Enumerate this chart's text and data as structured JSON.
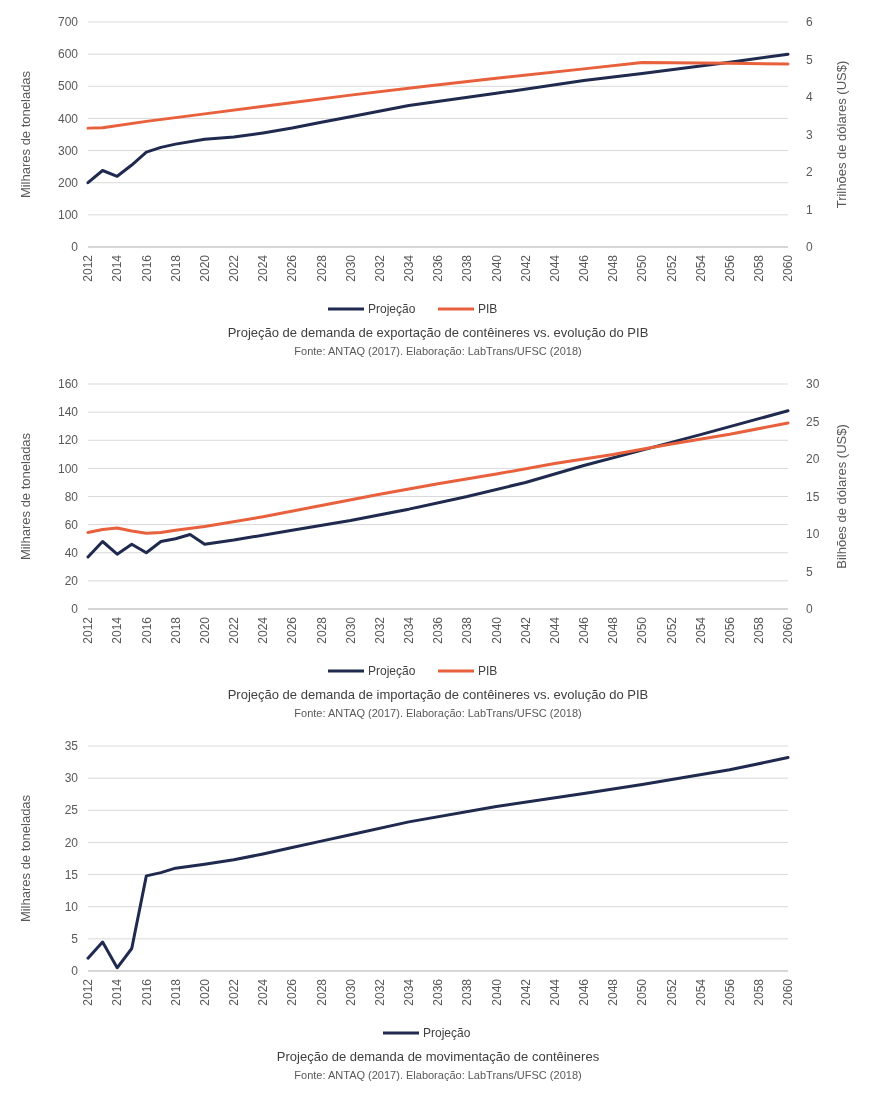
{
  "chart_data": [
    {
      "type": "line",
      "title": "Projeção de demanda de exportação de contêineres vs. evolução do PIB",
      "annotations": [
        "Fonte: ANTAQ (2017). Elaboração: LabTrans/UFSC (2018)"
      ],
      "ylabel": "Milhares de toneladas",
      "y2label": "Trilhões de dólares (US$)",
      "xlim": [
        2012,
        2060
      ],
      "xticks": [
        2012,
        2014,
        2016,
        2018,
        2020,
        2022,
        2024,
        2026,
        2028,
        2030,
        2032,
        2034,
        2036,
        2038,
        2040,
        2042,
        2044,
        2046,
        2048,
        2050,
        2052,
        2054,
        2056,
        2058,
        2060
      ],
      "ylim": [
        0,
        700
      ],
      "yticks": [
        0,
        100,
        200,
        300,
        400,
        500,
        600,
        700
      ],
      "y2lim": [
        0,
        6
      ],
      "y2ticks": [
        0,
        1,
        2,
        3,
        4,
        5,
        6
      ],
      "grid": "y",
      "legend": "bottom",
      "line_style": "solid",
      "series": [
        {
          "name": "Projeção",
          "color": "#1f2a4e",
          "x": [
            2012,
            2013,
            2014,
            2015,
            2016,
            2017,
            2018,
            2020,
            2022,
            2024,
            2026,
            2028,
            2030,
            2034,
            2040,
            2046,
            2050,
            2056,
            2060
          ],
          "values": [
            200,
            238,
            220,
            255,
            295,
            310,
            320,
            335,
            342,
            355,
            370,
            388,
            405,
            440,
            478,
            518,
            540,
            575,
            600
          ]
        },
        {
          "name": "PIB",
          "color": "#e8603c",
          "axis": "y2",
          "x": [
            2012,
            2013,
            2016,
            2020,
            2025,
            2030,
            2035,
            2040,
            2046,
            2050,
            2056,
            2060
          ],
          "values": [
            3.17,
            3.18,
            3.35,
            3.55,
            3.8,
            4.05,
            4.28,
            4.5,
            4.75,
            4.92,
            4.9,
            4.88
          ]
        }
      ]
    },
    {
      "type": "line",
      "title": "Projeção de demanda de importação de contêineres vs. evolução do PIB",
      "annotations": [
        "Fonte: ANTAQ (2017). Elaboração: LabTrans/UFSC (2018)"
      ],
      "ylabel": "Milhares de toneladas",
      "y2label": "Bilhões de dólares (US$)",
      "xlim": [
        2012,
        2060
      ],
      "xticks": [
        2012,
        2014,
        2016,
        2018,
        2020,
        2022,
        2024,
        2026,
        2028,
        2030,
        2032,
        2034,
        2036,
        2038,
        2040,
        2042,
        2044,
        2046,
        2048,
        2050,
        2052,
        2054,
        2056,
        2058,
        2060
      ],
      "ylim": [
        0,
        160
      ],
      "yticks": [
        0,
        20,
        40,
        60,
        80,
        100,
        120,
        140,
        160
      ],
      "y2lim": [
        0,
        30
      ],
      "y2ticks": [
        0,
        5,
        10,
        15,
        20,
        25,
        30
      ],
      "grid": "y",
      "legend": "bottom",
      "line_style": "solid",
      "series": [
        {
          "name": "Projeção",
          "color": "#1f2a4e",
          "x": [
            2012,
            2013,
            2014,
            2015,
            2016,
            2017,
            2018,
            2019,
            2020,
            2022,
            2026,
            2030,
            2034,
            2038,
            2042,
            2046,
            2050,
            2054,
            2060
          ],
          "values": [
            37,
            48,
            39,
            46,
            40,
            48,
            50,
            53,
            46,
            49,
            56,
            63,
            71,
            80,
            90,
            102,
            113,
            124,
            141
          ]
        },
        {
          "name": "PIB",
          "color": "#e8603c",
          "axis": "y2",
          "x": [
            2012,
            2013,
            2014,
            2015,
            2016,
            2017,
            2018,
            2020,
            2024,
            2028,
            2032,
            2036,
            2040,
            2044,
            2048,
            2052,
            2056,
            2060
          ],
          "values": [
            10.2,
            10.6,
            10.8,
            10.4,
            10.1,
            10.2,
            10.5,
            11,
            12.3,
            13.8,
            15.3,
            16.7,
            18,
            19.4,
            20.6,
            22,
            23.3,
            24.8
          ]
        }
      ]
    },
    {
      "type": "line",
      "title": "Projeção de demanda de movimentação de contêineres",
      "annotations": [
        "Fonte: ANTAQ (2017). Elaboração: LabTrans/UFSC (2018)"
      ],
      "ylabel": "Milhares de toneladas",
      "xlim": [
        2012,
        2060
      ],
      "xticks": [
        2012,
        2014,
        2016,
        2018,
        2020,
        2022,
        2024,
        2026,
        2028,
        2030,
        2032,
        2034,
        2036,
        2038,
        2040,
        2042,
        2044,
        2046,
        2048,
        2050,
        2052,
        2054,
        2056,
        2058,
        2060
      ],
      "ylim": [
        0,
        35
      ],
      "yticks": [
        0,
        5,
        10,
        15,
        20,
        25,
        30,
        35
      ],
      "grid": "y",
      "legend": "bottom",
      "line_style": "solid",
      "series": [
        {
          "name": "Projeção",
          "color": "#1f2a4e",
          "x": [
            2012,
            2013,
            2014,
            2015,
            2016,
            2017,
            2018,
            2020,
            2022,
            2024,
            2026,
            2028,
            2030,
            2034,
            2040,
            2046,
            2050,
            2056,
            2060
          ],
          "values": [
            2,
            4.5,
            0.5,
            3.5,
            14.8,
            15.3,
            16,
            16.6,
            17.3,
            18.2,
            19.2,
            20.2,
            21.2,
            23.2,
            25.6,
            27.6,
            29,
            31.3,
            33.2
          ]
        }
      ]
    }
  ]
}
